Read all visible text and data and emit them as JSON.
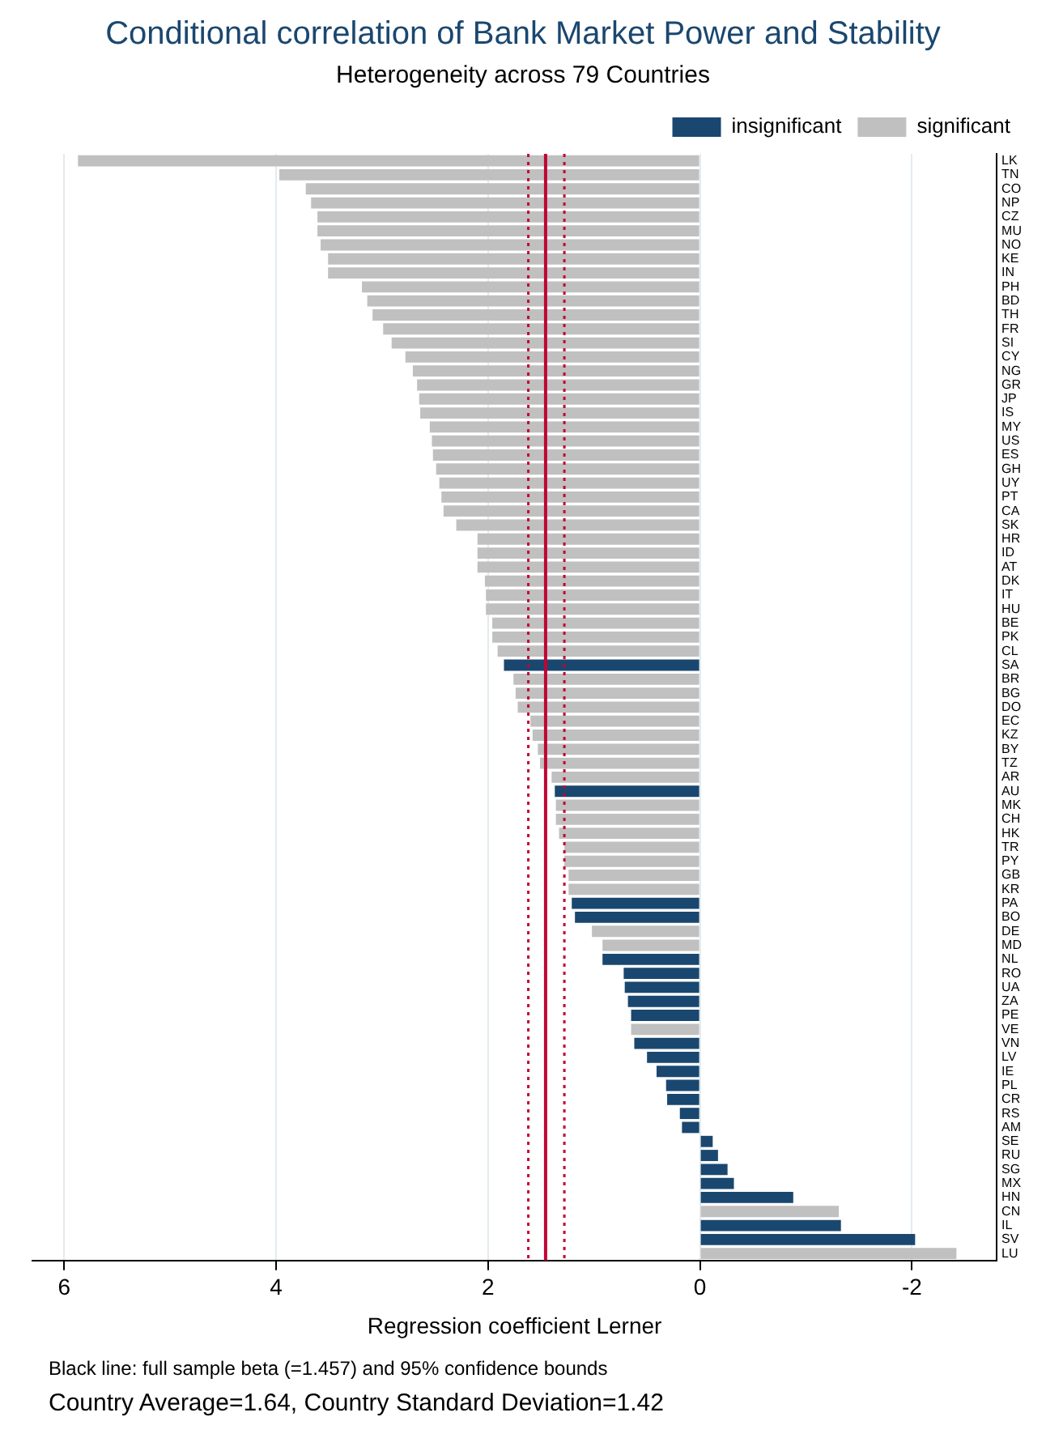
{
  "chart_data": {
    "type": "bar",
    "orientation": "horizontal",
    "title": "Conditional correlation of Bank Market Power and Stability",
    "subtitle": "Heterogeneity across 79 Countries",
    "xlabel": "Regression coefficient Lerner",
    "categories": [
      "LK",
      "TN",
      "CO",
      "NP",
      "CZ",
      "MU",
      "NO",
      "KE",
      "IN",
      "PH",
      "BD",
      "TH",
      "FR",
      "SI",
      "CY",
      "NG",
      "GR",
      "JP",
      "IS",
      "MY",
      "US",
      "ES",
      "GH",
      "UY",
      "PT",
      "CA",
      "SK",
      "HR",
      "ID",
      "AT",
      "DK",
      "IT",
      "HU",
      "BE",
      "PK",
      "CL",
      "SA",
      "BR",
      "BG",
      "DO",
      "EC",
      "KZ",
      "BY",
      "TZ",
      "AR",
      "AU",
      "MK",
      "CH",
      "HK",
      "TR",
      "PY",
      "GB",
      "KR",
      "PA",
      "BO",
      "DE",
      "MD",
      "NL",
      "RO",
      "UA",
      "ZA",
      "PE",
      "VE",
      "VN",
      "LV",
      "IE",
      "PL",
      "CR",
      "RS",
      "AM",
      "SE",
      "RU",
      "SG",
      "MX",
      "HN",
      "CN",
      "IL",
      "SV",
      "LU"
    ],
    "series": [
      {
        "name": "insignificant",
        "color": "#1a476f",
        "values": [
          null,
          null,
          null,
          null,
          null,
          null,
          null,
          null,
          null,
          null,
          null,
          null,
          null,
          null,
          null,
          null,
          null,
          null,
          null,
          null,
          null,
          null,
          null,
          null,
          null,
          null,
          null,
          null,
          null,
          null,
          null,
          null,
          null,
          null,
          null,
          null,
          1.85,
          null,
          null,
          null,
          null,
          null,
          null,
          null,
          null,
          1.37,
          null,
          null,
          null,
          null,
          null,
          null,
          null,
          1.21,
          1.18,
          null,
          null,
          0.92,
          0.72,
          0.71,
          0.68,
          0.65,
          null,
          0.62,
          0.5,
          0.41,
          0.32,
          0.31,
          0.19,
          0.17,
          -0.12,
          -0.17,
          -0.26,
          -0.32,
          -0.88,
          null,
          -1.33,
          -2.03,
          null
        ]
      },
      {
        "name": "significant",
        "color": "#c0c0c0",
        "values": [
          5.87,
          3.97,
          3.72,
          3.67,
          3.61,
          3.61,
          3.58,
          3.51,
          3.51,
          3.19,
          3.14,
          3.09,
          2.99,
          2.91,
          2.78,
          2.71,
          2.67,
          2.65,
          2.64,
          2.55,
          2.53,
          2.52,
          2.49,
          2.46,
          2.44,
          2.42,
          2.3,
          2.1,
          2.1,
          2.1,
          2.03,
          2.02,
          2.02,
          1.96,
          1.96,
          1.91,
          null,
          1.76,
          1.74,
          1.72,
          1.6,
          1.58,
          1.53,
          1.51,
          1.4,
          null,
          1.36,
          1.36,
          1.33,
          1.28,
          1.28,
          1.24,
          1.24,
          null,
          null,
          1.02,
          0.92,
          null,
          null,
          null,
          null,
          null,
          0.65,
          null,
          null,
          null,
          null,
          null,
          null,
          null,
          null,
          null,
          null,
          null,
          null,
          -1.31,
          null,
          null,
          -2.42
        ]
      }
    ],
    "xlim": [
      6.3,
      -2.8
    ],
    "xticks": [
      6,
      4,
      2,
      0,
      -2
    ],
    "grid": "x",
    "legend": "top right",
    "ref_lines": [
      {
        "axis": "x",
        "value": 1.457,
        "color": "#c10534",
        "line_style": "solid"
      },
      {
        "axis": "x",
        "value": 1.62,
        "color": "#c10534",
        "line_style": "dotted"
      },
      {
        "axis": "x",
        "value": 1.28,
        "color": "#c10534",
        "line_style": "dotted"
      }
    ],
    "annotations": [
      "Black line: full sample beta (=1.457) and 95% confidence bounds",
      "Country Average=1.64, Country Standard Deviation=1.42"
    ]
  }
}
